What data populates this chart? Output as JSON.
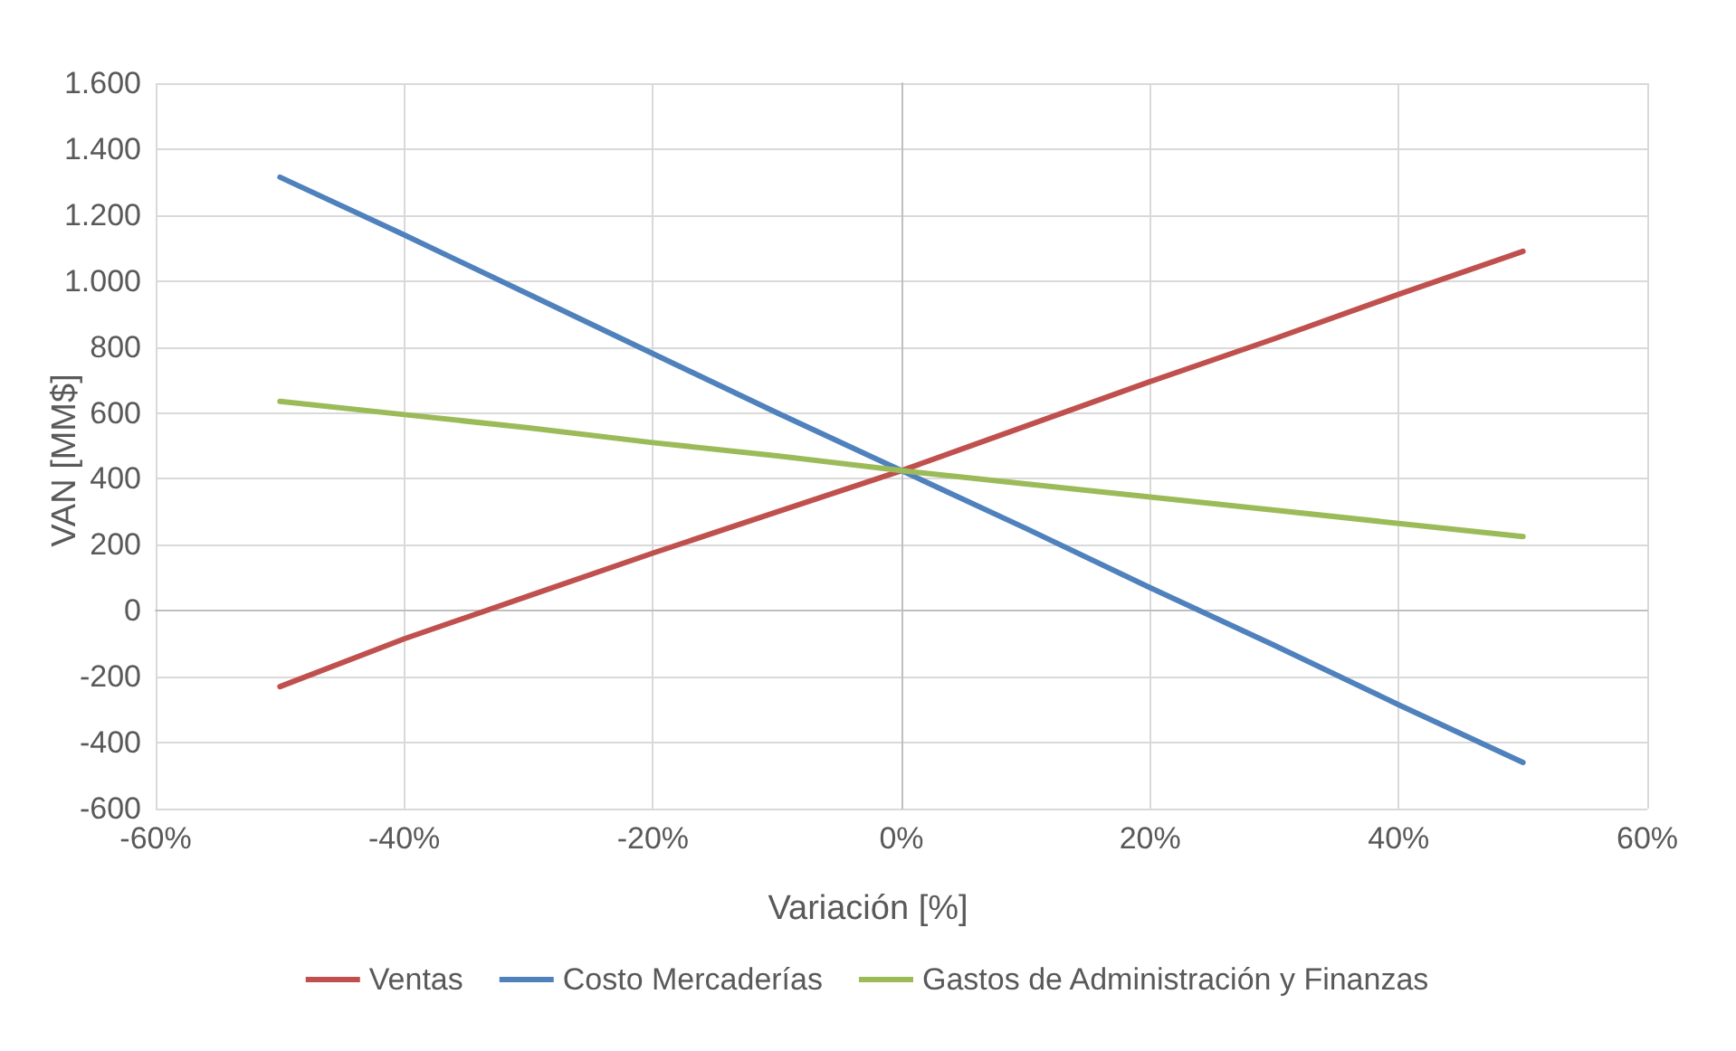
{
  "chart_data": {
    "type": "line",
    "xlabel": "Variación [%]",
    "ylabel": "VAN [MM$]",
    "x": [
      -50,
      -40,
      -30,
      -20,
      -10,
      0,
      10,
      20,
      30,
      40,
      50
    ],
    "series": [
      {
        "name": "Ventas",
        "color": "#c0504d",
        "values": [
          -230,
          -85,
          45,
          175,
          300,
          425,
          560,
          695,
          825,
          960,
          1090
        ]
      },
      {
        "name": "Costo Mercaderías",
        "color": "#4f81bd",
        "values": [
          1315,
          1140,
          960,
          780,
          600,
          425,
          250,
          70,
          -105,
          -285,
          -460
        ]
      },
      {
        "name": "Gastos de Administración y Finanzas",
        "color": "#9bbb59",
        "values": [
          635,
          595,
          555,
          510,
          470,
          425,
          385,
          345,
          305,
          265,
          225
        ]
      }
    ],
    "xlim": [
      -60,
      60
    ],
    "xticks": [
      {
        "value": -60,
        "label": "-60%"
      },
      {
        "value": -40,
        "label": "-40%"
      },
      {
        "value": -20,
        "label": "-20%"
      },
      {
        "value": 0,
        "label": "0%"
      },
      {
        "value": 20,
        "label": "20%"
      },
      {
        "value": 40,
        "label": "40%"
      },
      {
        "value": 60,
        "label": "60%"
      }
    ],
    "ylim": [
      -600,
      1600
    ],
    "yticks": [
      {
        "value": -600,
        "label": "-600"
      },
      {
        "value": -400,
        "label": "-400"
      },
      {
        "value": -200,
        "label": "-200"
      },
      {
        "value": 0,
        "label": "0"
      },
      {
        "value": 200,
        "label": "200"
      },
      {
        "value": 400,
        "label": "400"
      },
      {
        "value": 600,
        "label": "600"
      },
      {
        "value": 800,
        "label": "800"
      },
      {
        "value": 1000,
        "label": "1.000"
      },
      {
        "value": 1200,
        "label": "1.200"
      },
      {
        "value": 1400,
        "label": "1.400"
      },
      {
        "value": 1600,
        "label": "1.600"
      }
    ],
    "grid": true,
    "legend": "bottom",
    "marker": "none",
    "line_style": "solid"
  }
}
